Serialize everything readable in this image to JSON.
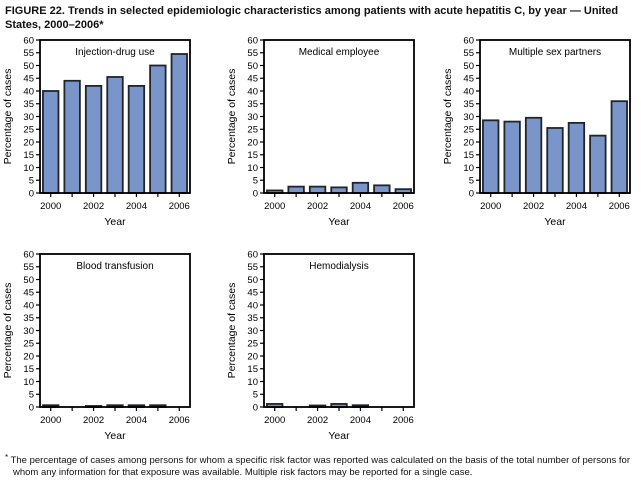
{
  "figure": {
    "title": "FIGURE 22. Trends in selected epidemiologic characteristics among patients with acute hepatitis C, by year — United States, 2000–2006*",
    "footnote_marker": "*",
    "footnote": "The percentage of cases among persons for whom a specific risk factor was reported was calculated on the basis of the total number of persons for whom any information for that exposure was available. Multiple risk factors may be reported for a single case."
  },
  "colors": {
    "bar_fill": "#7A95C9",
    "bar_stroke": "#21252B",
    "axis": "#000000"
  },
  "chart_data": [
    {
      "type": "bar",
      "title": "Injection-drug use",
      "categories": [
        2000,
        2001,
        2002,
        2003,
        2004,
        2005,
        2006
      ],
      "values": [
        40,
        44,
        42,
        45.5,
        42,
        50,
        54.5
      ],
      "xlabel": "Year",
      "ylabel": "Percentage of cases",
      "ylim": [
        0,
        60
      ],
      "ytick_step": 5,
      "xtick_labels": [
        2000,
        2002,
        2004,
        2006
      ],
      "grid": false,
      "legend": "none"
    },
    {
      "type": "bar",
      "title": "Medical employee",
      "categories": [
        2000,
        2001,
        2002,
        2003,
        2004,
        2005,
        2006
      ],
      "values": [
        1,
        2.5,
        2.5,
        2.2,
        4,
        3,
        1.5
      ],
      "xlabel": "Year",
      "ylabel": "Percentage of cases",
      "ylim": [
        0,
        60
      ],
      "ytick_step": 5,
      "xtick_labels": [
        2000,
        2002,
        2004,
        2006
      ],
      "grid": false,
      "legend": "none"
    },
    {
      "type": "bar",
      "title": "Multiple sex partners",
      "categories": [
        2000,
        2001,
        2002,
        2003,
        2004,
        2005,
        2006
      ],
      "values": [
        28.5,
        28,
        29.5,
        25.5,
        27.5,
        22.5,
        36
      ],
      "xlabel": "Year",
      "ylabel": "Percentage of cases",
      "ylim": [
        0,
        60
      ],
      "ytick_step": 5,
      "xtick_labels": [
        2000,
        2002,
        2004,
        2006
      ],
      "grid": false,
      "legend": "none"
    },
    {
      "type": "bar",
      "title": "Blood transfusion",
      "categories": [
        2000,
        2001,
        2002,
        2003,
        2004,
        2005,
        2006
      ],
      "values": [
        0.7,
        0,
        0.4,
        0.7,
        0.7,
        0.7,
        0
      ],
      "xlabel": "Year",
      "ylabel": "Percentage of cases",
      "ylim": [
        0,
        60
      ],
      "ytick_step": 5,
      "xtick_labels": [
        2000,
        2002,
        2004,
        2006
      ],
      "grid": false,
      "legend": "none"
    },
    {
      "type": "bar",
      "title": "Hemodialysis",
      "categories": [
        2000,
        2001,
        2002,
        2003,
        2004,
        2005,
        2006
      ],
      "values": [
        1.2,
        0,
        0.6,
        1.2,
        0.7,
        0,
        0
      ],
      "xlabel": "Year",
      "ylabel": "Percentage of cases",
      "ylim": [
        0,
        60
      ],
      "ytick_step": 5,
      "xtick_labels": [
        2000,
        2002,
        2004,
        2006
      ],
      "grid": false,
      "legend": "none"
    }
  ]
}
